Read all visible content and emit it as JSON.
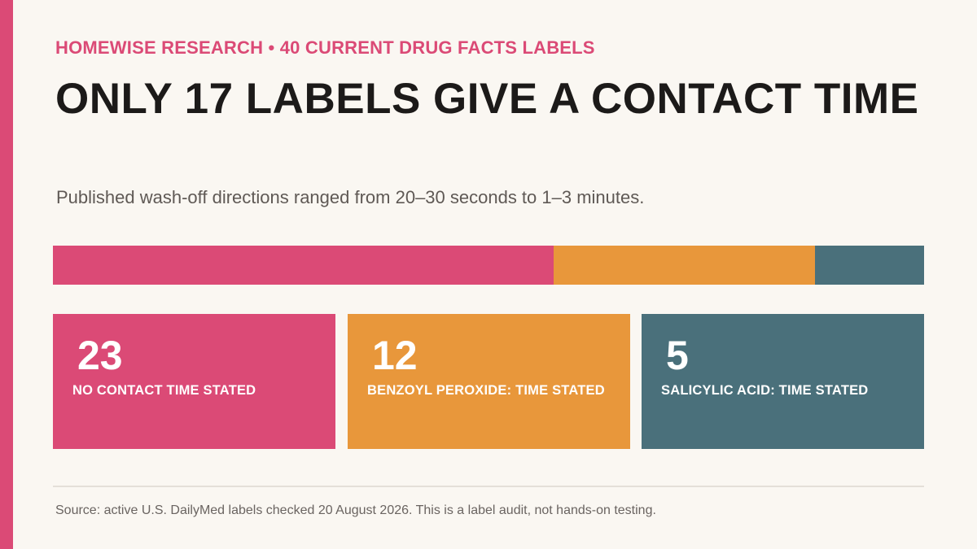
{
  "header": {
    "kicker": "HOMEWISE RESEARCH • 40 CURRENT DRUG FACTS LABELS",
    "title": "ONLY 17 LABELS GIVE A CONTACT TIME",
    "subtitle": "Published wash-off directions ranged from 20–30 seconds to 1–3 minutes."
  },
  "chart_data": {
    "type": "bar",
    "orientation": "horizontal-stacked",
    "total": 40,
    "categories": [
      "NO CONTACT TIME STATED",
      "BENZOYL PEROXIDE: TIME STATED",
      "SALICYLIC ACID: TIME STATED"
    ],
    "values": [
      23,
      12,
      5
    ],
    "colors": [
      "#db4a76",
      "#e8973b",
      "#4a707b"
    ]
  },
  "cards": [
    {
      "value": "23",
      "label": "NO CONTACT TIME STATED"
    },
    {
      "value": "12",
      "label": "BENZOYL PEROXIDE: TIME STATED"
    },
    {
      "value": "5",
      "label": "SALICYLIC ACID: TIME STATED"
    }
  ],
  "footer": {
    "source": "Source: active U.S. DailyMed labels checked 20 August 2026. This is a label audit, not hands-on testing."
  },
  "theme": {
    "accent": "#db4a76",
    "background": "#faf7f2"
  }
}
